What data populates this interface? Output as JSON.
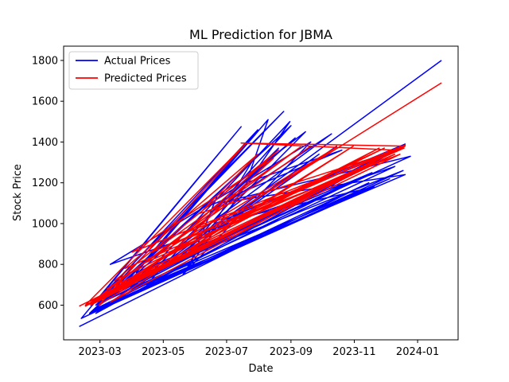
{
  "chart_data": {
    "type": "line",
    "title": "ML Prediction for JBMA",
    "xlabel": "Date",
    "ylabel": "Stock Price",
    "xlim": [
      "2023-01-25",
      "2024-02-09"
    ],
    "ylim": [
      430,
      1870
    ],
    "x_ticks": [
      "2023-03-01",
      "2023-05-01",
      "2023-07-01",
      "2023-09-01",
      "2023-11-01",
      "2024-01-01"
    ],
    "x_tick_labels": [
      "2023-03",
      "2023-05",
      "2023-07",
      "2023-09",
      "2023-11",
      "2024-01"
    ],
    "y_ticks": [
      600,
      800,
      1000,
      1200,
      1400,
      1600,
      1800
    ],
    "y_tick_labels": [
      "600",
      "800",
      "1000",
      "1200",
      "1400",
      "1600",
      "1800"
    ],
    "grid": false,
    "legend_position": "upper-left",
    "series": [
      {
        "name": "Actual Prices",
        "color": "#0000ff",
        "x": [
          "2023-02-09",
          "2023-11-15",
          "2023-02-11",
          "2023-07-15",
          "2023-03-01",
          "2023-08-25",
          "2023-02-25",
          "2023-12-10",
          "2023-03-11",
          "2023-09-20",
          "2023-05-20",
          "2023-07-25",
          "2023-02-19",
          "2023-12-05",
          "2023-04-01",
          "2023-08-31",
          "2023-05-25",
          "2023-06-23",
          "2023-03-03",
          "2023-10-10",
          "2023-06-15",
          "2023-09-05",
          "2023-02-24",
          "2023-11-10",
          "2023-02-21",
          "2023-12-18",
          "2023-05-15",
          "2023-08-20",
          "2023-04-11",
          "2023-09-28",
          "2023-06-03",
          "2023-10-15",
          "2023-03-11",
          "2023-11-20",
          "2023-06-20",
          "2023-12-20",
          "2023-03-05",
          "2023-07-31",
          "2023-03-14",
          "2023-12-18",
          "2023-02-27",
          "2023-09-01",
          "2023-04-15",
          "2023-12-20",
          "2023-06-24",
          "2023-12-25",
          "2023-02-22",
          "2023-11-18",
          "2023-04-05",
          "2023-08-10",
          "2023-07-20",
          "2023-10-20",
          "2023-06-11",
          "2023-09-15",
          "2023-05-15",
          "2023-12-19",
          "2023-02-25",
          "2024-01-24"
        ],
        "y": [
          495,
          1200,
          535,
          1475,
          640,
          1550,
          600,
          1280,
          800,
          1400,
          750,
          1300,
          560,
          1220,
          680,
          1500,
          780,
          1150,
          610,
          1440,
          1050,
          1420,
          580,
          1230,
          570,
          1260,
          820,
          1370,
          720,
          1340,
          900,
          1380,
          600,
          1180,
          1000,
          1390,
          650,
          1460,
          640,
          1380,
          610,
          1480,
          700,
          1240,
          1100,
          1330,
          620,
          1250,
          760,
          1510,
          1200,
          1360,
          1080,
          1450,
          820,
          1380,
          560,
          1800
        ]
      },
      {
        "name": "Predicted Prices",
        "color": "#ff0000",
        "x": [
          "2023-02-09",
          "2023-12-19",
          "2023-02-15",
          "2023-07-20",
          "2023-02-28",
          "2023-10-31",
          "2023-03-11",
          "2023-12-20",
          "2023-04-01",
          "2023-08-15",
          "2023-05-05",
          "2023-11-25",
          "2023-02-20",
          "2023-12-10",
          "2023-03-25",
          "2023-07-31",
          "2023-06-05",
          "2023-12-12",
          "2023-03-02",
          "2023-09-10",
          "2023-04-20",
          "2023-12-18",
          "2023-02-25",
          "2023-12-15",
          "2023-05-10",
          "2023-08-20",
          "2023-03-15",
          "2023-11-30",
          "2023-06-20",
          "2023-12-20",
          "2023-02-20",
          "2023-10-15",
          "2023-04-10",
          "2023-12-19",
          "2023-05-25",
          "2023-09-20",
          "2023-03-08",
          "2023-12-12",
          "2023-07-15",
          "2023-12-20",
          "2023-02-15",
          "2024-01-24"
        ],
        "y": [
          595,
          1380,
          600,
          1395,
          600,
          1380,
          615,
          1385,
          860,
          1320,
          840,
          1370,
          620,
          1340,
          780,
          1340,
          1050,
          1360,
          650,
          1375,
          860,
          1380,
          620,
          1340,
          900,
          1360,
          720,
          1370,
          980,
          1385,
          600,
          1375,
          800,
          1370,
          960,
          1380,
          680,
          1360,
          1395,
          1380,
          595,
          1690
        ]
      }
    ]
  }
}
